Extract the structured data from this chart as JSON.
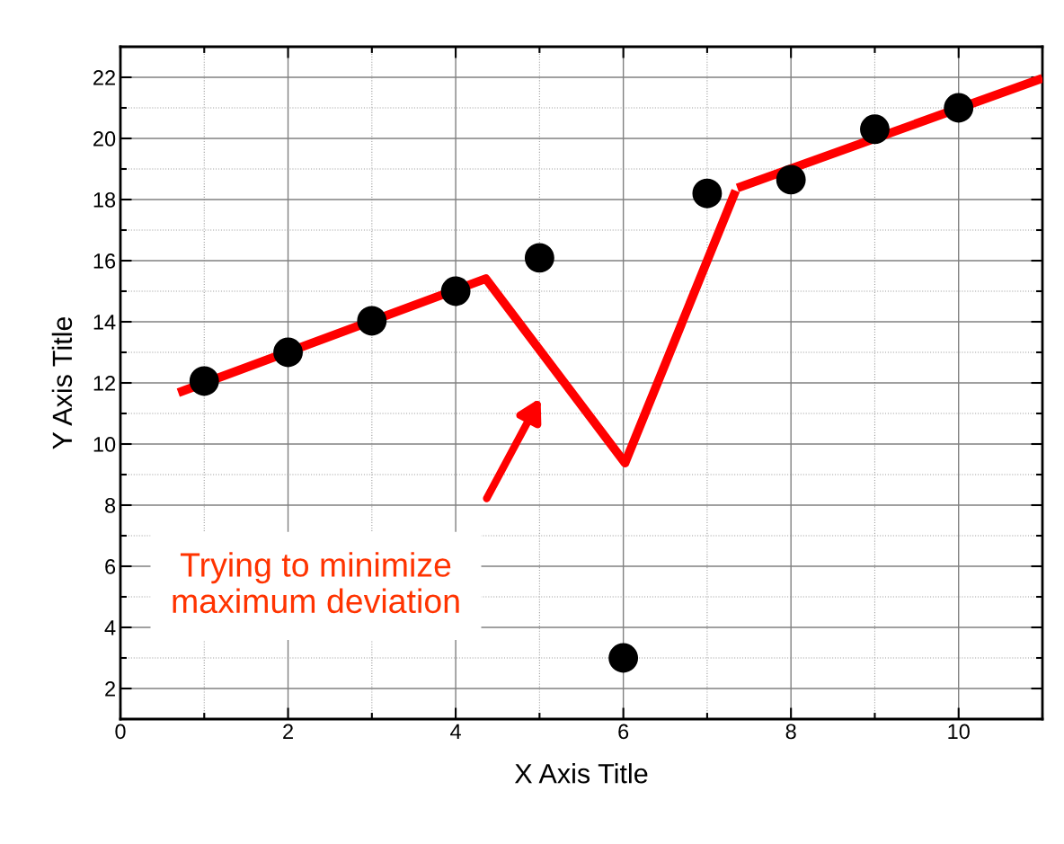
{
  "chart_data": {
    "type": "scatter",
    "xlabel": "X Axis Title",
    "ylabel": "Y Axis Title",
    "x": [
      1,
      2,
      3,
      4,
      5,
      6,
      7,
      8,
      9,
      10
    ],
    "series": [
      {
        "color": "#000000",
        "marker": "circle",
        "values": [
          12.06,
          13.0,
          14.03,
          15.0,
          16.09,
          3.0,
          18.2,
          18.65,
          20.3,
          21.0
        ]
      },
      {
        "type": "line",
        "color": "#ff0000",
        "line_style": "solid",
        "x": [
          0.69,
          4.36,
          6.02,
          7.34
        ],
        "values": [
          11.68,
          15.41,
          9.38,
          18.29
        ]
      },
      {
        "type": "line",
        "color": "#ff0000",
        "line_style": "solid",
        "x": [
          7.36,
          11.0
        ],
        "values": [
          18.38,
          21.97
        ]
      }
    ],
    "xlim": [
      0,
      11
    ],
    "ylim": [
      1,
      23
    ],
    "xticks": [
      0,
      {
        "value": 1,
        "label": null
      },
      2,
      {
        "value": 3,
        "label": null
      },
      4,
      {
        "value": 5,
        "label": null
      },
      6,
      {
        "value": 7,
        "label": null
      },
      8,
      {
        "value": 9,
        "label": null
      },
      10,
      {
        "value": 11,
        "label": null
      }
    ],
    "yticks": [
      {
        "value": 1,
        "label": null
      },
      2,
      {
        "value": 3,
        "label": null
      },
      4,
      {
        "value": 5,
        "label": null
      },
      6,
      {
        "value": 7,
        "label": null
      },
      8,
      {
        "value": 9,
        "label": null
      },
      10,
      {
        "value": 11,
        "label": null
      },
      12,
      {
        "value": 13,
        "label": null
      },
      14,
      {
        "value": 15,
        "label": null
      },
      16,
      {
        "value": 17,
        "label": null
      },
      18,
      {
        "value": 19,
        "label": null
      },
      20,
      {
        "value": 21,
        "label": null
      },
      22,
      {
        "value": 23,
        "label": null
      }
    ],
    "grid": true,
    "annotations": [
      "Trying to minimize\nmaximum deviation"
    ]
  }
}
